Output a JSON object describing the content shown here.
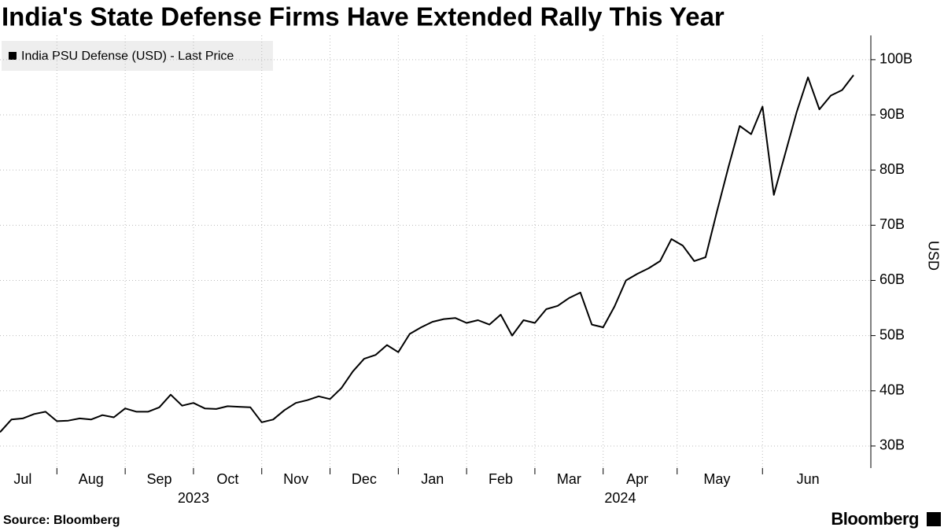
{
  "chart_data": {
    "type": "line",
    "title": "India's State Defense Firms Have Extended Rally This Year",
    "y_label": "USD",
    "source": "Source: Bloomberg",
    "brand": "Bloomberg",
    "year_labels": [
      "2023",
      "2024"
    ],
    "categories": [
      null,
      null,
      "Jul",
      null,
      null,
      null,
      null,
      null,
      "Aug",
      null,
      null,
      null,
      null,
      null,
      "Sep",
      null,
      null,
      null,
      null,
      null,
      "Oct",
      null,
      null,
      null,
      null,
      null,
      "Nov",
      null,
      null,
      null,
      null,
      null,
      "Dec",
      null,
      null,
      null,
      null,
      null,
      "Jan",
      null,
      null,
      null,
      null,
      null,
      "Feb",
      null,
      null,
      null,
      null,
      null,
      "Mar",
      null,
      null,
      null,
      null,
      null,
      "Apr",
      null,
      null,
      null,
      null,
      null,
      null,
      "May",
      null,
      null,
      null,
      null,
      null,
      null,
      null,
      "Jun",
      null,
      null,
      null,
      null
    ],
    "series": [
      {
        "name": "India PSU Defense (USD) - Last Price",
        "color": "#000000",
        "values": [
          32.5,
          34.8,
          35,
          35.8,
          36.2,
          34.5,
          34.6,
          35,
          34.8,
          35.6,
          35.2,
          36.8,
          36.2,
          36.2,
          37,
          39.3,
          37.3,
          37.8,
          36.8,
          36.7,
          37.2,
          37.1,
          37,
          34.3,
          34.8,
          36.5,
          37.8,
          38.3,
          39,
          38.5,
          40.5,
          43.5,
          45.8,
          46.5,
          48.3,
          47,
          50.3,
          51.5,
          52.5,
          53,
          53.2,
          52.3,
          52.8,
          52,
          53.8,
          50,
          52.8,
          52.3,
          54.8,
          55.4,
          56.8,
          57.8,
          52,
          51.5,
          55.3,
          60,
          61.2,
          62.2,
          63.5,
          67.5,
          66.3,
          63.5,
          64.2,
          72.5,
          80.5,
          88,
          86.5,
          91.5,
          75.5,
          83,
          90.5,
          96.8,
          91,
          93.5,
          94.5,
          97.2
        ]
      }
    ],
    "ylim": [
      26,
      104.4
    ],
    "yticks": [
      {
        "value": 30,
        "label": "30B"
      },
      {
        "value": 40,
        "label": "40B"
      },
      {
        "value": 50,
        "label": "50B"
      },
      {
        "value": 60,
        "label": "60B"
      },
      {
        "value": 70,
        "label": "70B"
      },
      {
        "value": 80,
        "label": "80B"
      },
      {
        "value": 90,
        "label": "90B"
      },
      {
        "value": 100,
        "label": "100B"
      }
    ],
    "grid": true
  }
}
